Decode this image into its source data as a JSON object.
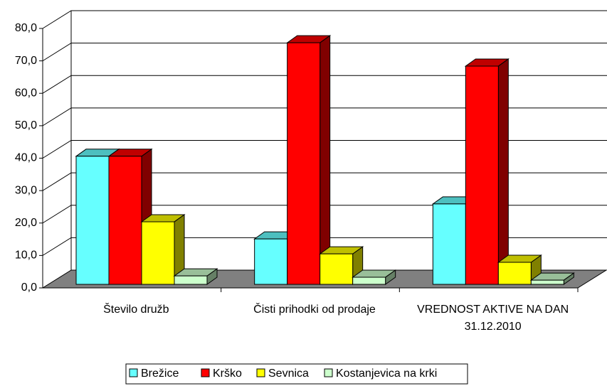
{
  "chart_data": {
    "type": "bar3d",
    "categories": [
      "Število družb",
      "Čisti prihodki od prodaje",
      "VREDNOST AKTIVE NA DAN 31.12.2010"
    ],
    "series": [
      {
        "name": "Brežice",
        "color": "#66ffff",
        "values": [
          39.5,
          14,
          24.8
        ]
      },
      {
        "name": "Krško",
        "color": "#ff0000",
        "values": [
          39.5,
          74.5,
          67.3
        ]
      },
      {
        "name": "Sevnica",
        "color": "#ffff00",
        "values": [
          19.3,
          9.4,
          6.8
        ]
      },
      {
        "name": "Kostanjevica na krki",
        "color": "#ccffcc",
        "values": [
          2.6,
          2.2,
          1.3
        ]
      }
    ],
    "ylim": [
      0,
      80
    ],
    "yticks": [
      {
        "value": 0,
        "label": "0,0"
      },
      {
        "value": 10,
        "label": "10,0"
      },
      {
        "value": 20,
        "label": "20,0"
      },
      {
        "value": 30,
        "label": "30,0"
      },
      {
        "value": 40,
        "label": "40,0"
      },
      {
        "value": 50,
        "label": "50,0"
      },
      {
        "value": 60,
        "label": "60,0"
      },
      {
        "value": 70,
        "label": "70,0"
      },
      {
        "value": 80,
        "label": "80,0"
      }
    ],
    "grid": true,
    "legend": "bottom"
  }
}
